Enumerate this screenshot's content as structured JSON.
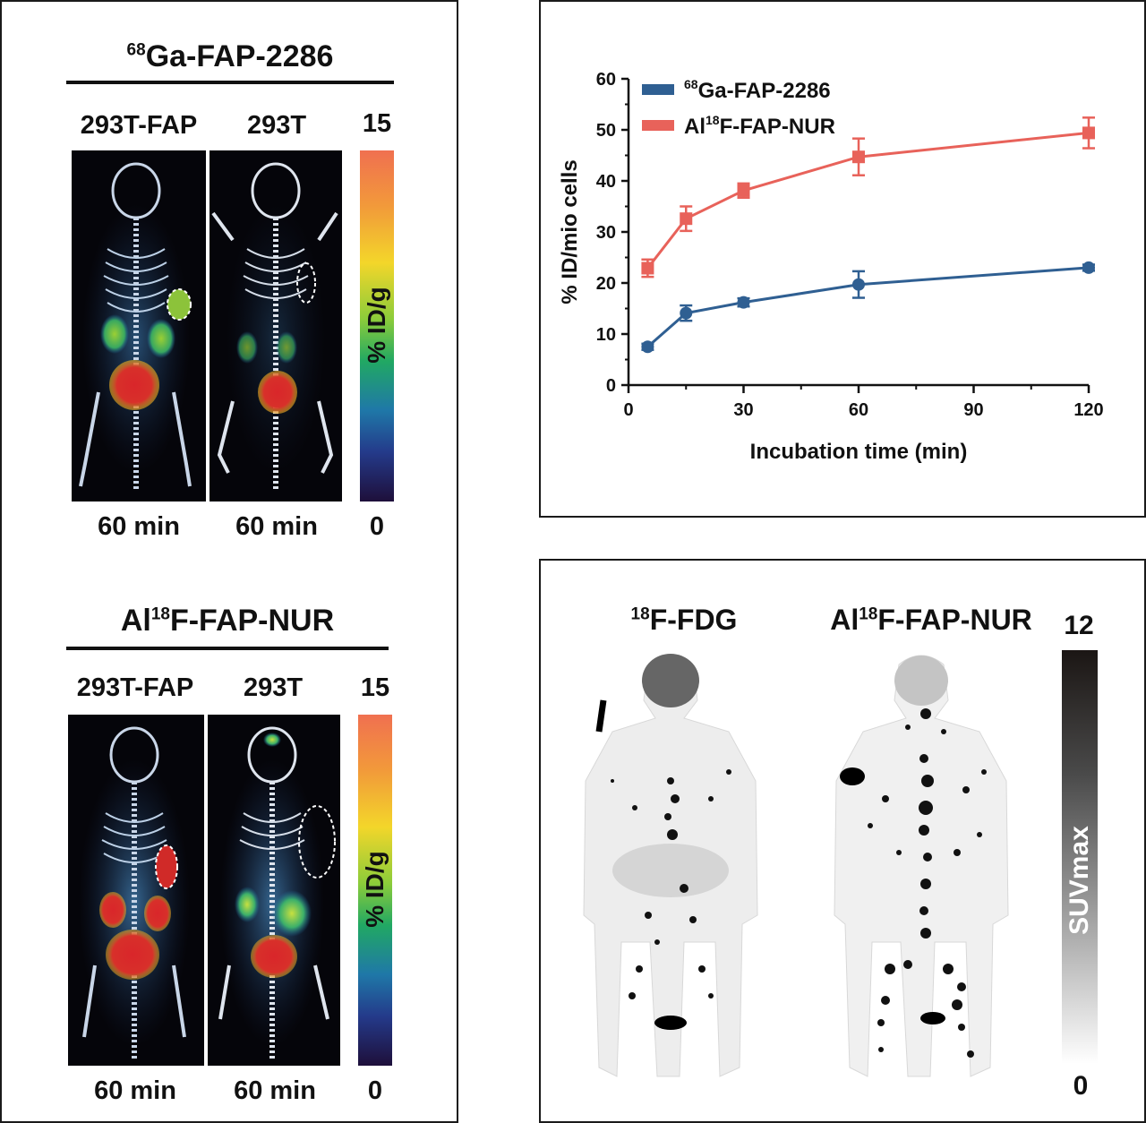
{
  "left_top": {
    "title_sup": "68",
    "title": "Ga-FAP-2286",
    "col1": "293T-FAP",
    "col2": "293T",
    "scale_max": "15",
    "scale_min": "0",
    "scale_label": "% ID/g",
    "time1": "60 min",
    "time2": "60 min"
  },
  "left_bottom": {
    "title_pre": "Al",
    "title_sup": "18",
    "title": "F-FAP-NUR",
    "col1": "293T-FAP",
    "col2": "293T",
    "scale_max": "15",
    "scale_min": "0",
    "scale_label": "% ID/g",
    "time1": "60 min",
    "time2": "60 min"
  },
  "chart_data": {
    "type": "line",
    "xlabel": "Incubation time (min)",
    "ylabel": "% ID/mio cells",
    "xlim": [
      0,
      120
    ],
    "ylim": [
      0,
      60
    ],
    "xticks": [
      0,
      30,
      60,
      90,
      120
    ],
    "yticks": [
      0,
      10,
      20,
      30,
      40,
      50,
      60
    ],
    "grid": false,
    "legend_position": "top-left",
    "series": [
      {
        "name_sup": "68",
        "name": "Ga-FAP-2286",
        "color": "#2f5f92",
        "marker": "circle",
        "x": [
          5,
          15,
          30,
          60,
          120
        ],
        "y": [
          7.5,
          14.1,
          16.2,
          19.7,
          23.0
        ],
        "err": [
          0.6,
          1.5,
          0.8,
          2.6,
          0.6
        ]
      },
      {
        "name_pre": "Al",
        "name_sup": "18",
        "name": "F-FAP-NUR",
        "color": "#e8625a",
        "marker": "square",
        "x": [
          5,
          15,
          30,
          60,
          120
        ],
        "y": [
          22.9,
          32.6,
          38.1,
          44.7,
          49.4
        ],
        "err": [
          1.7,
          2.4,
          1.4,
          3.6,
          3.0
        ]
      }
    ]
  },
  "right_bottom": {
    "label1_sup": "18",
    "label1": "F-FDG",
    "label2_pre": "Al",
    "label2_sup": "18",
    "label2": "F-FAP-NUR",
    "scale_max": "12",
    "scale_min": "0",
    "scale_label": "SUVmax"
  }
}
